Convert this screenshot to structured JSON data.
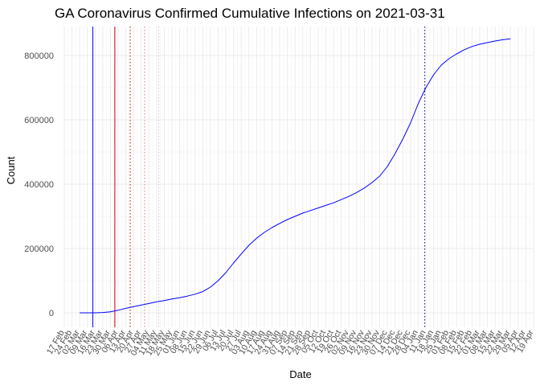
{
  "chart_data": {
    "type": "line",
    "title": "GA Coronavirus Confirmed Cumulative Infections on 2021-03-31",
    "xlabel": "Date",
    "ylabel": "Count",
    "x_range": [
      "2020-02-17",
      "2021-04-19"
    ],
    "ylim": [
      -45000,
      890000
    ],
    "y_ticks": [
      0,
      200000,
      400000,
      600000,
      800000
    ],
    "y_tick_labels": [
      "0",
      "200000",
      "400000",
      "600000",
      "800000"
    ],
    "x_ticks": [
      "2020-02-17",
      "2020-02-24",
      "2020-03-02",
      "2020-03-09",
      "2020-03-16",
      "2020-03-23",
      "2020-03-30",
      "2020-04-06",
      "2020-04-13",
      "2020-04-20",
      "2020-04-27",
      "2020-05-04",
      "2020-05-11",
      "2020-05-18",
      "2020-05-25",
      "2020-06-01",
      "2020-06-08",
      "2020-06-15",
      "2020-06-22",
      "2020-06-29",
      "2020-07-06",
      "2020-07-13",
      "2020-07-20",
      "2020-07-27",
      "2020-08-03",
      "2020-08-10",
      "2020-08-17",
      "2020-08-24",
      "2020-08-31",
      "2020-09-07",
      "2020-09-14",
      "2020-09-21",
      "2020-09-28",
      "2020-10-05",
      "2020-10-12",
      "2020-10-19",
      "2020-10-26",
      "2020-11-02",
      "2020-11-09",
      "2020-11-16",
      "2020-11-23",
      "2020-11-30",
      "2020-12-07",
      "2020-12-14",
      "2020-12-21",
      "2020-12-28",
      "2021-01-04",
      "2021-01-11",
      "2021-01-18",
      "2021-01-25",
      "2021-02-01",
      "2021-02-08",
      "2021-02-15",
      "2021-02-22",
      "2021-03-01",
      "2021-03-08",
      "2021-03-15",
      "2021-03-22",
      "2021-03-29",
      "2021-04-05",
      "2021-04-12",
      "2021-04-19"
    ],
    "x_tick_labels": [
      "17 Feb",
      "24 Feb",
      "02 Mar",
      "09 Mar",
      "16 Mar",
      "23 Mar",
      "30 Mar",
      "06 Apr",
      "13 Apr",
      "20 Apr",
      "27 Apr",
      "04 May",
      "11 May",
      "18 May",
      "25 May",
      "01 Jun",
      "08 Jun",
      "15 Jun",
      "22 Jun",
      "29 Jun",
      "06 Jul",
      "13 Jul",
      "20 Jul",
      "27 Jul",
      "03 Aug",
      "10 Aug",
      "17 Aug",
      "24 Aug",
      "31 Aug",
      "07 Sep",
      "14 Sep",
      "21 Sep",
      "28 Sep",
      "05 Oct",
      "12 Oct",
      "19 Oct",
      "26 Oct",
      "02 Nov",
      "09 Nov",
      "16 Nov",
      "23 Nov",
      "30 Nov",
      "07 Dec",
      "14 Dec",
      "21 Dec",
      "28 Dec",
      "04 Jan",
      "11 Jan",
      "18 Jan",
      "25 Jan",
      "01 Feb",
      "08 Feb",
      "15 Feb",
      "22 Feb",
      "01 Mar",
      "08 Mar",
      "15 Mar",
      "22 Mar",
      "29 Mar",
      "05 Apr",
      "12 Apr",
      "19 Apr"
    ],
    "grid": true,
    "series": [
      {
        "color": "#0000ff",
        "points": [
          [
            "2020-03-02",
            0
          ],
          [
            "2020-03-09",
            5
          ],
          [
            "2020-03-16",
            100
          ],
          [
            "2020-03-23",
            800
          ],
          [
            "2020-03-30",
            3000
          ],
          [
            "2020-04-06",
            8000
          ],
          [
            "2020-04-13",
            14000
          ],
          [
            "2020-04-20",
            19000
          ],
          [
            "2020-04-27",
            24000
          ],
          [
            "2020-05-04",
            29000
          ],
          [
            "2020-05-11",
            34000
          ],
          [
            "2020-05-18",
            38000
          ],
          [
            "2020-05-25",
            43000
          ],
          [
            "2020-06-01",
            47000
          ],
          [
            "2020-06-08",
            52000
          ],
          [
            "2020-06-15",
            58000
          ],
          [
            "2020-06-22",
            66000
          ],
          [
            "2020-06-29",
            80000
          ],
          [
            "2020-07-06",
            100000
          ],
          [
            "2020-07-13",
            125000
          ],
          [
            "2020-07-20",
            155000
          ],
          [
            "2020-07-27",
            183000
          ],
          [
            "2020-08-03",
            210000
          ],
          [
            "2020-08-10",
            232000
          ],
          [
            "2020-08-17",
            250000
          ],
          [
            "2020-08-24",
            265000
          ],
          [
            "2020-08-31",
            278000
          ],
          [
            "2020-09-07",
            290000
          ],
          [
            "2020-09-14",
            300000
          ],
          [
            "2020-09-21",
            310000
          ],
          [
            "2020-09-28",
            318000
          ],
          [
            "2020-10-05",
            326000
          ],
          [
            "2020-10-12",
            334000
          ],
          [
            "2020-10-19",
            342000
          ],
          [
            "2020-10-26",
            352000
          ],
          [
            "2020-11-02",
            362000
          ],
          [
            "2020-11-09",
            374000
          ],
          [
            "2020-11-16",
            388000
          ],
          [
            "2020-11-23",
            405000
          ],
          [
            "2020-11-30",
            425000
          ],
          [
            "2020-12-07",
            455000
          ],
          [
            "2020-12-14",
            495000
          ],
          [
            "2020-12-21",
            540000
          ],
          [
            "2020-12-28",
            590000
          ],
          [
            "2021-01-04",
            650000
          ],
          [
            "2021-01-11",
            700000
          ],
          [
            "2021-01-18",
            740000
          ],
          [
            "2021-01-25",
            770000
          ],
          [
            "2021-02-01",
            790000
          ],
          [
            "2021-02-08",
            805000
          ],
          [
            "2021-02-15",
            818000
          ],
          [
            "2021-02-22",
            828000
          ],
          [
            "2021-03-01",
            835000
          ],
          [
            "2021-03-08",
            840000
          ],
          [
            "2021-03-15",
            845000
          ],
          [
            "2021-03-22",
            849000
          ],
          [
            "2021-03-29",
            852000
          ]
        ]
      }
    ],
    "reference_lines": [
      {
        "date": "2020-03-14",
        "color": "#0000ff",
        "style": "solid"
      },
      {
        "date": "2020-04-03",
        "color": "#cc0000",
        "style": "solid"
      },
      {
        "date": "2020-04-17",
        "color": "#cc0000",
        "style": "dotted"
      },
      {
        "date": "2020-04-30",
        "color": "#e08080",
        "style": "dotted"
      },
      {
        "date": "2020-05-13",
        "color": "#c8c8c8",
        "style": "dotted"
      },
      {
        "date": "2021-01-10",
        "color": "#00008b",
        "style": "dotted"
      }
    ]
  }
}
